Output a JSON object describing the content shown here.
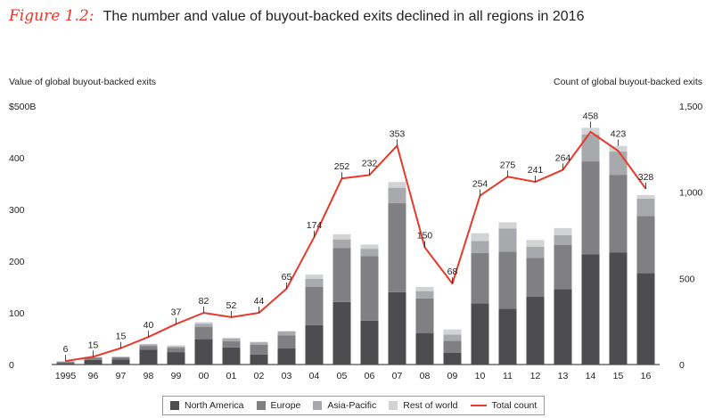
{
  "figure": {
    "label": "Figure 1.2:",
    "title": "The number and value of buyout-backed exits declined in all regions in 2016"
  },
  "chart_data": {
    "type": "bar",
    "stacked": true,
    "left_axis_title": "Value of global buyout-backed exits",
    "right_axis_title": "Count of global buyout-backed exits",
    "left_axis": {
      "ylim": [
        0,
        500
      ],
      "ticks": [
        "0",
        "100",
        "200",
        "300",
        "400",
        "$500B"
      ],
      "tick_values": [
        0,
        100,
        200,
        300,
        400,
        500
      ]
    },
    "right_axis": {
      "ylim": [
        0,
        1500
      ],
      "ticks": [
        "0",
        "500",
        "1,000",
        "1,500"
      ],
      "tick_values": [
        0,
        500,
        1000,
        1500
      ]
    },
    "categories": [
      "1995",
      "96",
      "97",
      "98",
      "99",
      "00",
      "01",
      "02",
      "03",
      "04",
      "05",
      "06",
      "07",
      "08",
      "09",
      "10",
      "11",
      "12",
      "13",
      "14",
      "15",
      "16"
    ],
    "totals": [
      6,
      15,
      15,
      40,
      37,
      82,
      52,
      44,
      65,
      174,
      252,
      232,
      353,
      150,
      68,
      254,
      275,
      241,
      264,
      458,
      423,
      328
    ],
    "total_labels": [
      "6",
      "15",
      "15",
      "40",
      "37",
      "82",
      "52",
      "44",
      "65",
      "174",
      "252",
      "232",
      "353",
      "150",
      "68",
      "254",
      "275",
      "241",
      "264",
      "458",
      "423",
      "328"
    ],
    "series": [
      {
        "name": "North America",
        "color": "#4d4d4f",
        "values": [
          3,
          9,
          10,
          29,
          24,
          49,
          33,
          19,
          31,
          76,
          121,
          85,
          140,
          61,
          23,
          118,
          108,
          131,
          146,
          213,
          217,
          177
        ]
      },
      {
        "name": "Europe",
        "color": "#808082",
        "values": [
          2,
          4,
          4,
          7,
          8,
          24,
          12,
          19,
          25,
          74,
          104,
          125,
          172,
          67,
          23,
          98,
          110,
          75,
          85,
          180,
          150,
          110
        ]
      },
      {
        "name": "Asia-Pacific",
        "color": "#a7a9ac",
        "values": [
          1,
          1,
          1,
          3,
          3,
          6,
          5,
          5,
          8,
          16,
          17,
          14,
          30,
          14,
          12,
          23,
          45,
          22,
          19,
          52,
          45,
          34
        ]
      },
      {
        "name": "Rest of world",
        "color": "#d1d3d4",
        "values": [
          0,
          1,
          0,
          1,
          2,
          3,
          2,
          1,
          1,
          8,
          10,
          8,
          11,
          8,
          10,
          15,
          12,
          13,
          14,
          13,
          11,
          7
        ]
      }
    ],
    "line_series": {
      "name": "Total count",
      "color": "#e8392b",
      "axis": "right",
      "values": [
        20,
        45,
        95,
        160,
        235,
        300,
        275,
        300,
        440,
        740,
        1080,
        1100,
        1270,
        680,
        470,
        980,
        1090,
        1060,
        1130,
        1350,
        1240,
        1020
      ]
    },
    "legend": {
      "placement": "bottom"
    }
  }
}
